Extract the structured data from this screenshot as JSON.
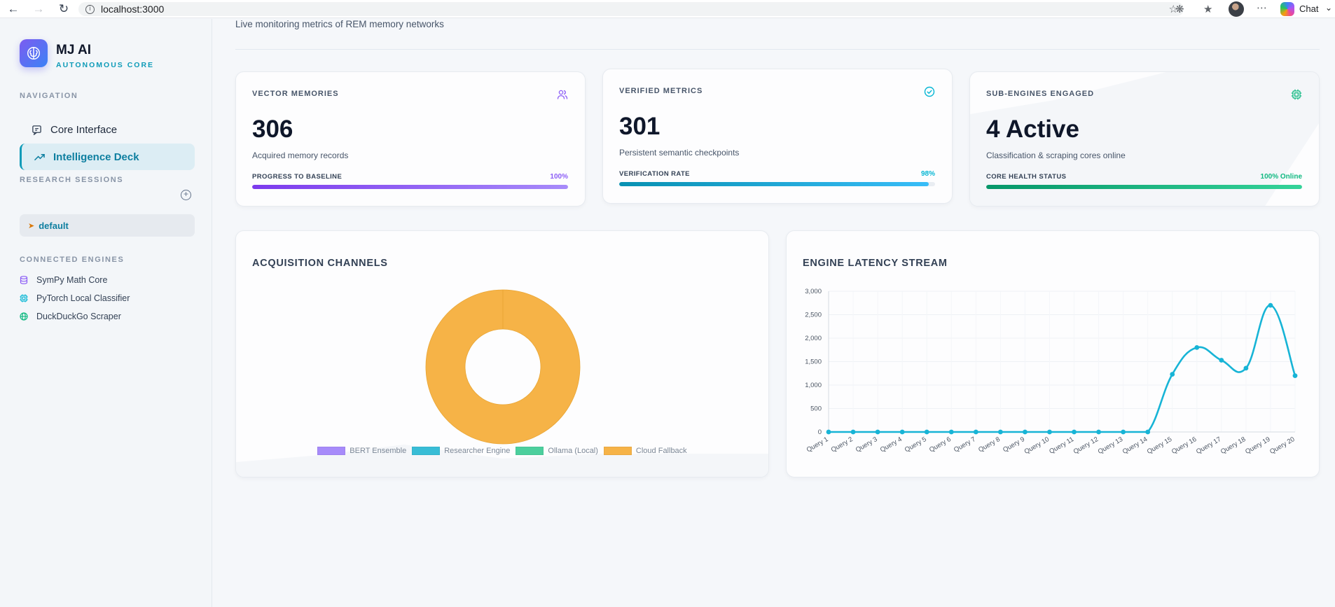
{
  "browser": {
    "url": "localhost:3000",
    "chat_label": "Chat"
  },
  "sidebar": {
    "brand_name": "MJ AI",
    "brand_subtitle": "AUTONOMOUS CORE",
    "nav_heading": "NAVIGATION",
    "nav_items": [
      {
        "label": "Core Interface",
        "icon": "chat-square-icon",
        "active": false
      },
      {
        "label": "Intelligence Deck",
        "icon": "trending-up-icon",
        "active": true
      }
    ],
    "sessions_heading": "RESEARCH SESSIONS",
    "sessions": [
      {
        "label": "default",
        "icon": "broom-icon"
      }
    ],
    "engines_heading": "CONNECTED ENGINES",
    "engines": [
      {
        "label": "SymPy Math Core",
        "icon": "database-icon",
        "color": "#8b5cf6"
      },
      {
        "label": "PyTorch Local Classifier",
        "icon": "cpu-icon",
        "color": "#06b6d4"
      },
      {
        "label": "DuckDuckGo Scraper",
        "icon": "globe-icon",
        "color": "#10b981"
      }
    ]
  },
  "main": {
    "subtitle": "Live monitoring metrics of REM memory networks",
    "stats": [
      {
        "label": "VECTOR MEMORIES",
        "value": "306",
        "description": "Acquired memory records",
        "bar_label": "PROGRESS TO BASELINE",
        "bar_value": "100%",
        "progress": 1.0,
        "icon": "users-icon",
        "color": "#8b5cf6"
      },
      {
        "label": "VERIFIED METRICS",
        "value": "301",
        "description": "Persistent semantic checkpoints",
        "bar_label": "VERIFICATION RATE",
        "bar_value": "98%",
        "progress": 0.98,
        "icon": "check-circle-icon",
        "color": "#06b6d4"
      },
      {
        "label": "SUB-ENGINES ENGAGED",
        "value": "4 Active",
        "description": "Classification & scraping cores online",
        "bar_label": "CORE HEALTH STATUS",
        "bar_value": "100% Online",
        "progress": 1.0,
        "icon": "cpu-icon",
        "color": "#10b981"
      }
    ],
    "acquisition": {
      "title": "ACQUISITION CHANNELS"
    },
    "latency": {
      "title": "ENGINE LATENCY STREAM"
    }
  },
  "chart_data": [
    {
      "type": "pie",
      "title": "ACQUISITION CHANNELS",
      "categories": [
        "BERT Ensemble",
        "Researcher Engine",
        "Ollama (Local)",
        "Cloud Fallback"
      ],
      "values": [
        0,
        0,
        0,
        100
      ],
      "colors": [
        "#a78bfa",
        "#38bdd6",
        "#4ccf9d",
        "#f6b347"
      ],
      "legend": "bottom"
    },
    {
      "type": "line",
      "title": "ENGINE LATENCY STREAM",
      "x": [
        "Query 1",
        "Query 2",
        "Query 3",
        "Query 4",
        "Query 5",
        "Query 6",
        "Query 7",
        "Query 8",
        "Query 9",
        "Query 10",
        "Query 11",
        "Query 12",
        "Query 13",
        "Query 14",
        "Query 15",
        "Query 16",
        "Query 17",
        "Query 18",
        "Query 19",
        "Query 20"
      ],
      "series": [
        {
          "values": [
            0,
            0,
            0,
            0,
            0,
            0,
            0,
            0,
            0,
            0,
            0,
            0,
            0,
            0,
            1230,
            1800,
            1530,
            1360,
            2700,
            1200
          ]
        }
      ],
      "ylim": [
        0,
        3000
      ],
      "yticks": [
        "0",
        "500",
        "1,000",
        "1,500",
        "2,000",
        "2,500",
        "3,000"
      ],
      "grid": true,
      "color": "#17b4d6"
    }
  ]
}
